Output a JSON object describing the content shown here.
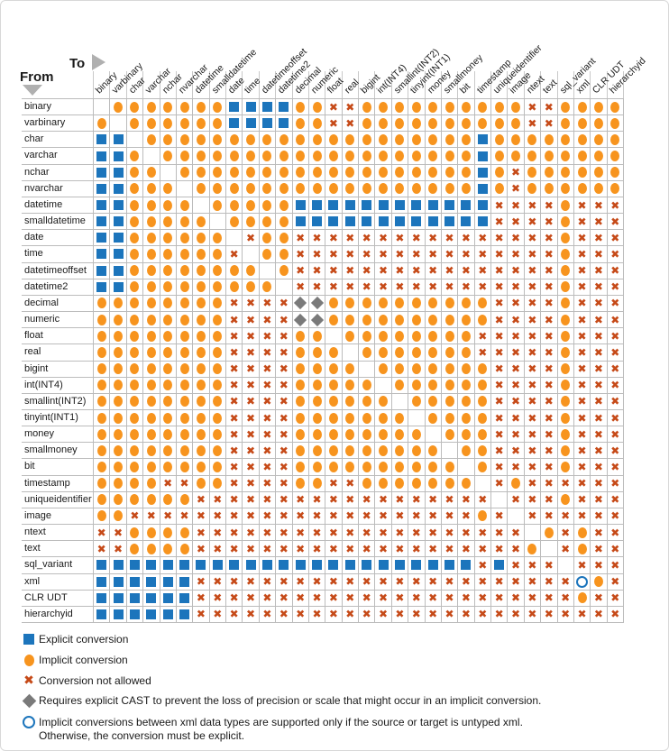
{
  "header": {
    "from_label": "From",
    "to_label": "To"
  },
  "colors": {
    "explicit": "#1c75bc",
    "implicit": "#f7941e",
    "not_allowed": "#c64a18",
    "cast_diamond": "#7a7a7a",
    "untyped_xml_ring": "#1c75bc",
    "grid_line": "#bcbcbc",
    "triangle": "#b0b0b0"
  },
  "chart_data": {
    "type": "heatmap",
    "legend_position": "bottom",
    "rows": [
      "binary",
      "varbinary",
      "char",
      "varchar",
      "nchar",
      "nvarchar",
      "datetime",
      "smalldatetime",
      "date",
      "time",
      "datetimeoffset",
      "datetime2",
      "decimal",
      "numeric",
      "float",
      "real",
      "bigint",
      "int(INT4)",
      "smallint(INT2)",
      "tinyint(INT1)",
      "money",
      "smallmoney",
      "bit",
      "timestamp",
      "uniqueidentifier",
      "image",
      "ntext",
      "text",
      "sql_variant",
      "xml",
      "CLR UDT",
      "hierarchyid"
    ],
    "cols": [
      "binary",
      "varbinary",
      "char",
      "varchar",
      "nchar",
      "nvarchar",
      "datetime",
      "smalldatetime",
      "date",
      "time",
      "datetimeoffset",
      "datetime2",
      "decimal",
      "numeric",
      "float",
      "real",
      "bigint",
      "int(INT4)",
      "smallint(INT2)",
      "tinyint(INT1)",
      "money",
      "smallmoney",
      "bit",
      "timestamp",
      "uniqueidentifier",
      "image",
      "ntext",
      "text",
      "sql_variant",
      "xml",
      "CLR UDT",
      "hierarchyid"
    ],
    "cell_codes": {
      "E": "Explicit conversion",
      "I": "Implicit conversion",
      "X": "Conversion not allowed",
      "D": "Requires explicit CAST to prevent the loss of precision or scale",
      "O": "Implicit only if the source or target is untyped xml",
      ".": "same type / blank"
    },
    "matrix": [
      ".IIIIIIIEEEEIIXXIIIIIIIIIIXXIIII",
      "I.IIIIIIEEEEIIXXIIIIIIIIIIXXIIII",
      "EE.IIIIIIIIIIIIIIIIIIIIEIIIIIIII",
      "EEI.IIIIIIIIIIIIIIIIIIIEIIIIIIII",
      "EEII.IIIIIIIIIIIIIIIIIIEIXIIIIII",
      "EEIII.IIIIIIIIIIIIIIIIIEIXIIIIII",
      "EEIIII.IIIIIEEEEEEEEEEEEXXXXIXXX",
      "EEIIIII.IIIIEEEEEEEEEEEEXXXXIXXX",
      "EEIIIIII.XIIXXXXXXXXXXXXXXXXIXXX",
      "EEIIIIIIX.IIXXXXXXXXXXXXXXXXIXXX",
      "EEIIIIIIII.IXXXXXXXXXXXXXXXXIXXX",
      "EEIIIIIIIII.XXXXXXXXXXXXXXXXIXXX",
      "IIIIIIIIXXXXDDIIIIIIIIIIXXXXIXXX",
      "IIIIIIIIXXXXDDIIIIIIIIIIXXXXIXXX",
      "IIIIIIIIXXXXII.IIIIIIIIXXXXXIXXX",
      "IIIIIIIIXXXXIII.IIIIIIIXXXXXIXXX",
      "IIIIIIIIXXXXIIII.IIIIIIIXXXXIXXX",
      "IIIIIIIIXXXXIIIII.IIIIIIXXXXIXXX",
      "IIIIIIIIXXXXIIIIII.IIIIIXXXXIXXX",
      "IIIIIIIIXXXXIIIIIII.IIIIXXXXIXXX",
      "IIIIIIIIXXXXIIIIIIII.IIIXXXXIXXX",
      "IIIIIIIIXXXXIIIIIIIII.IIXXXXIXXX",
      "IIIIIIIIXXXXIIIIIIIIII.IXXXXIXXX",
      "IIIIXXIIXXXXIIXXIIIIIII.XIXXXXXX",
      "IIIIIIXXXXXXXXXXXXXXXXXX.XXXIXXX",
      "IIXXXXXXXXXXXXXXXXXXXXXIX.XXXXXX",
      "XXIIIIXXXXXXXXXXXXXXXXXXXX.IXIXX",
      "XXIIIIXXXXXXXXXXXXXXXXXXXXI.XIXX",
      "EEEEEEEEEEEEEEEEEEEEEEEXEXXX.XXX",
      "EEEEEEXXXXXXXXXXXXXXXXXXXXXXXOIX",
      "EEEEEEXXXXXXXXXXXXXXXXXXXXXXXIXX",
      "EEEEEEXXXXXXXXXXXXXXXXXXXXXXXXXX"
    ],
    "legend": [
      {
        "symbol": "explicit-square",
        "label": "Explicit conversion"
      },
      {
        "symbol": "implicit-circle",
        "label": "Implicit conversion"
      },
      {
        "symbol": "not-allowed-x",
        "label": "Conversion not allowed"
      },
      {
        "symbol": "cast-diamond",
        "label": "Requires explicit CAST to prevent the loss of precision or scale that might occur in an implicit conversion."
      },
      {
        "symbol": "untyped-xml-circle",
        "label": "Implicit conversions between xml data types are supported only if the source or target is untyped xml.",
        "label_line2": "Otherwise, the conversion must be explicit."
      }
    ]
  }
}
